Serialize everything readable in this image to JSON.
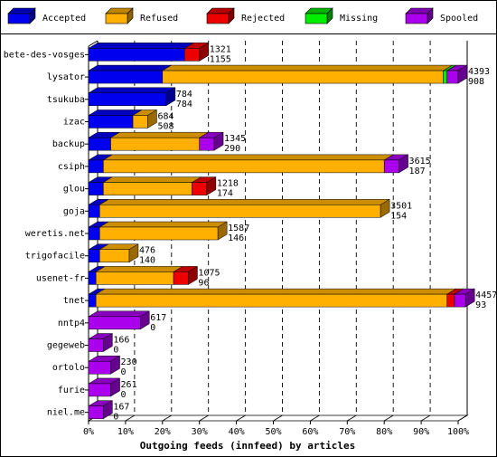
{
  "chart_data": {
    "type": "bar",
    "stacked": true,
    "orientation": "horizontal",
    "xlabel": "Outgoing feeds (innfeed) by articles",
    "xlim": [
      0,
      100
    ],
    "xticks": [
      "0%",
      "10%",
      "20%",
      "30%",
      "40%",
      "50%",
      "60%",
      "70%",
      "80%",
      "90%",
      "100%"
    ],
    "grid": "vertical dashed",
    "legend_position": "top",
    "series": [
      {
        "name": "Accepted",
        "color": "#0000ee"
      },
      {
        "name": "Refused",
        "color": "#ffb000"
      },
      {
        "name": "Rejected",
        "color": "#ee0000"
      },
      {
        "name": "Missing",
        "color": "#00ee00"
      },
      {
        "name": "Spooled",
        "color": "#aa00ee"
      }
    ],
    "categories": [
      "bete-des-vosges",
      "lysator",
      "tsukuba",
      "izac",
      "backup",
      "csiph",
      "glou",
      "goja",
      "weretis.net",
      "trigofacile",
      "usenet-fr",
      "tnet",
      "nntp4",
      "gegeweb",
      "ortolo",
      "furie",
      "niel.me"
    ],
    "label_top": [
      "1321",
      "4393",
      "784",
      "684",
      "1345",
      "3615",
      "1218",
      "3501",
      "1587",
      "476",
      "1075",
      "4457",
      "617",
      "166",
      "230",
      "261",
      "167"
    ],
    "label_bottom": [
      "1155",
      "908",
      "784",
      "508",
      "290",
      "187",
      "174",
      "154",
      "146",
      "140",
      "96",
      "93",
      "0",
      "0",
      "0",
      "0",
      "0"
    ],
    "percent_values": {
      "Accepted": [
        26,
        20,
        21,
        12,
        6,
        4,
        4,
        3,
        3,
        3,
        2,
        2,
        0,
        0,
        0,
        0,
        0
      ],
      "Refused": [
        0,
        76,
        0,
        4,
        24,
        76,
        24,
        76,
        32,
        8,
        21,
        95,
        0,
        0,
        0,
        0,
        0
      ],
      "Rejected": [
        4,
        0,
        0,
        0,
        0,
        0,
        4,
        0,
        0,
        0,
        4,
        2,
        0,
        0,
        0,
        0,
        0
      ],
      "Missing": [
        0,
        1,
        0,
        0,
        0,
        0,
        0,
        0,
        0,
        0,
        0,
        0,
        0,
        0,
        0,
        0,
        0
      ],
      "Spooled": [
        0,
        3,
        0,
        0,
        4,
        4,
        0,
        0,
        0,
        0,
        0,
        3,
        14,
        4,
        6,
        6,
        4
      ]
    }
  }
}
